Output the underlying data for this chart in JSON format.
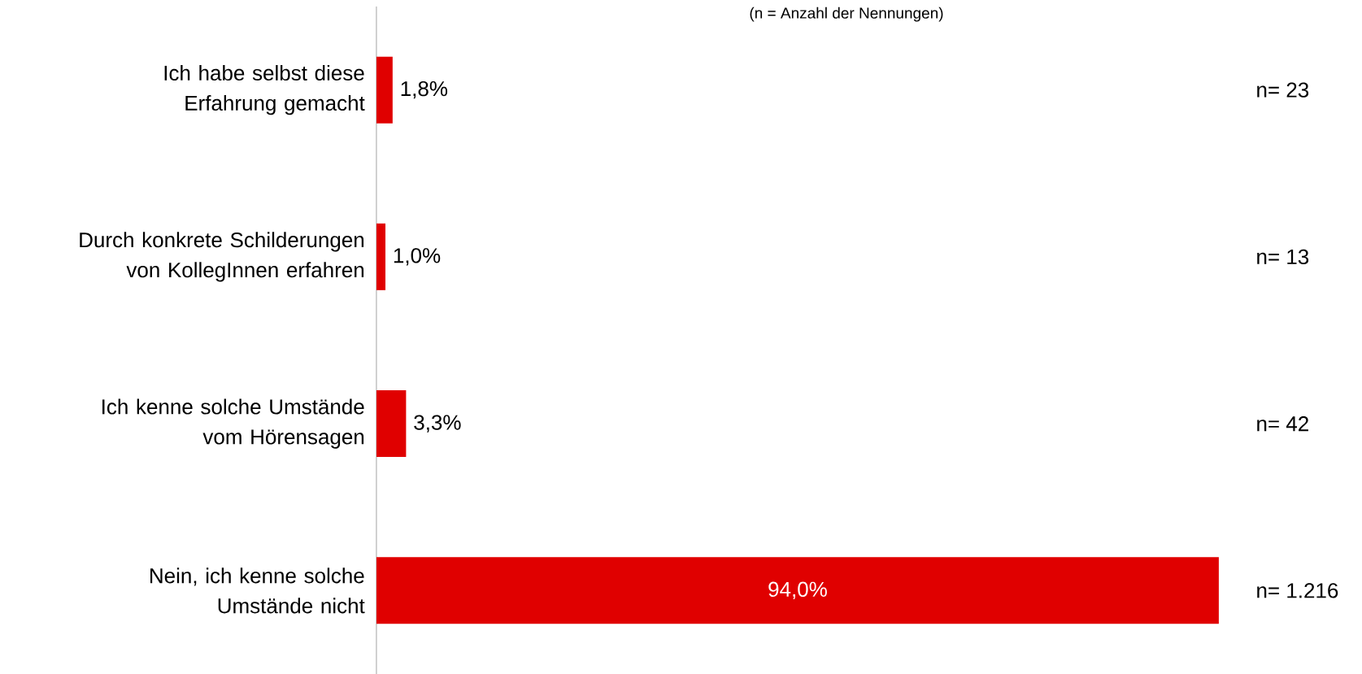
{
  "chart_data": {
    "type": "bar",
    "orientation": "horizontal",
    "subtitle": "(n =  Anzahl der Nennungen)",
    "categories": [
      "Ich habe selbst diese Erfahrung gemacht",
      "Durch konkrete Schilderungen von KollegInnen erfahren",
      "Ich kenne solche Umstände vom Hörensagen",
      "Nein, ich kenne solche Umstände nicht"
    ],
    "values": [
      1.8,
      1.0,
      3.3,
      94.0
    ],
    "value_labels": [
      "1,8%",
      "1,0%",
      "3,3%",
      "94,0%"
    ],
    "color": "#e00000",
    "tick_labels": "y",
    "annotations": [
      "n= 23",
      "n= 13",
      "n= 42",
      "n= 1.216"
    ]
  }
}
